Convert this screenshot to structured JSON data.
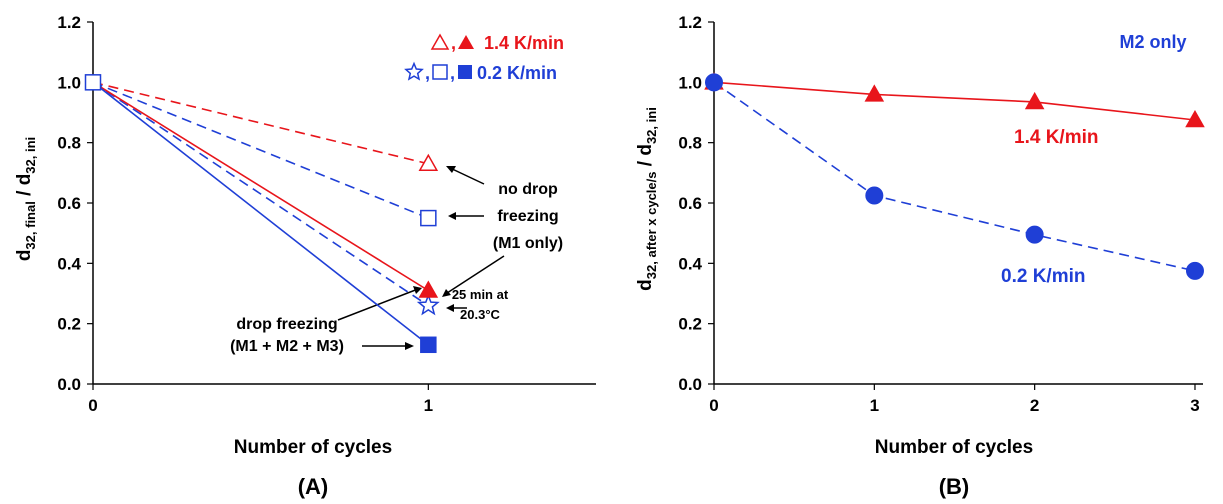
{
  "colors": {
    "red": "#e8151b",
    "blue": "#1f3fd6",
    "axis": "#000000"
  },
  "chart_data": [
    {
      "type": "line",
      "panel_label": "(A)",
      "xlabel": "Number of cycles",
      "ylabel_main": "d",
      "ylabel_sub": "32, final",
      "ylabel_sep": " / d",
      "ylabel_sub2": "32, ini",
      "xlim": [
        0,
        1.5
      ],
      "ylim": [
        0,
        1.2
      ],
      "xticks": [
        "0",
        "1"
      ],
      "yticks": [
        "0.0",
        "0.2",
        "0.4",
        "0.6",
        "0.8",
        "1.0",
        "1.2"
      ],
      "grid": false,
      "legend": {
        "position": "top-right",
        "entries": [
          {
            "symbols": [
              "triangle-open",
              "triangle-filled"
            ],
            "label": "1.4 K/min",
            "color": "red"
          },
          {
            "symbols": [
              "star-open",
              "square-open",
              "square-filled"
            ],
            "label": "0.2 K/min",
            "color": "blue"
          }
        ]
      },
      "series": [
        {
          "color": "red",
          "dash": true,
          "marker": "triangle-open",
          "x": [
            0,
            1
          ],
          "y": [
            1.0,
            0.73
          ]
        },
        {
          "color": "blue",
          "dash": true,
          "marker": "square-open",
          "x": [
            0,
            1
          ],
          "y": [
            1.0,
            0.55
          ]
        },
        {
          "color": "blue",
          "dash": true,
          "marker": "star-open",
          "x": [
            0,
            1
          ],
          "y": [
            1.0,
            0.26
          ]
        },
        {
          "color": "red",
          "dash": false,
          "marker": "triangle-filled",
          "x": [
            0,
            1
          ],
          "y": [
            1.0,
            0.31
          ]
        },
        {
          "color": "blue",
          "dash": false,
          "marker": "square-filled",
          "x": [
            0,
            1
          ],
          "y": [
            1.0,
            0.13
          ]
        }
      ],
      "annotations": {
        "no_drop": [
          "no drop",
          "freezing",
          "(M1 only)"
        ],
        "drop": [
          "drop freezing",
          "(M1 + M2 + M3)"
        ],
        "hold": [
          "25 min at",
          "20.3°C"
        ]
      }
    },
    {
      "type": "line",
      "panel_label": "(B)",
      "xlabel": "Number of cycles",
      "ylabel_main": "d",
      "ylabel_sub": "32, after x cycle/s",
      "ylabel_sep": " / d",
      "ylabel_sub2": "32, ini",
      "xlim": [
        0,
        3.05
      ],
      "ylim": [
        0,
        1.2
      ],
      "xticks": [
        "0",
        "1",
        "2",
        "3"
      ],
      "yticks": [
        "0.0",
        "0.2",
        "0.4",
        "0.6",
        "0.8",
        "1.0",
        "1.2"
      ],
      "grid": false,
      "note": "M2 only",
      "series": [
        {
          "name": "1.4 K/min",
          "color": "red",
          "dash": false,
          "marker": "triangle-filled",
          "x": [
            0,
            1,
            2,
            3
          ],
          "y": [
            1.0,
            0.96,
            0.935,
            0.875
          ]
        },
        {
          "name": "0.2 K/min",
          "color": "blue",
          "dash": true,
          "marker": "circle-filled",
          "x": [
            0,
            1,
            2,
            3
          ],
          "y": [
            1.0,
            0.625,
            0.495,
            0.375
          ]
        }
      ]
    }
  ]
}
